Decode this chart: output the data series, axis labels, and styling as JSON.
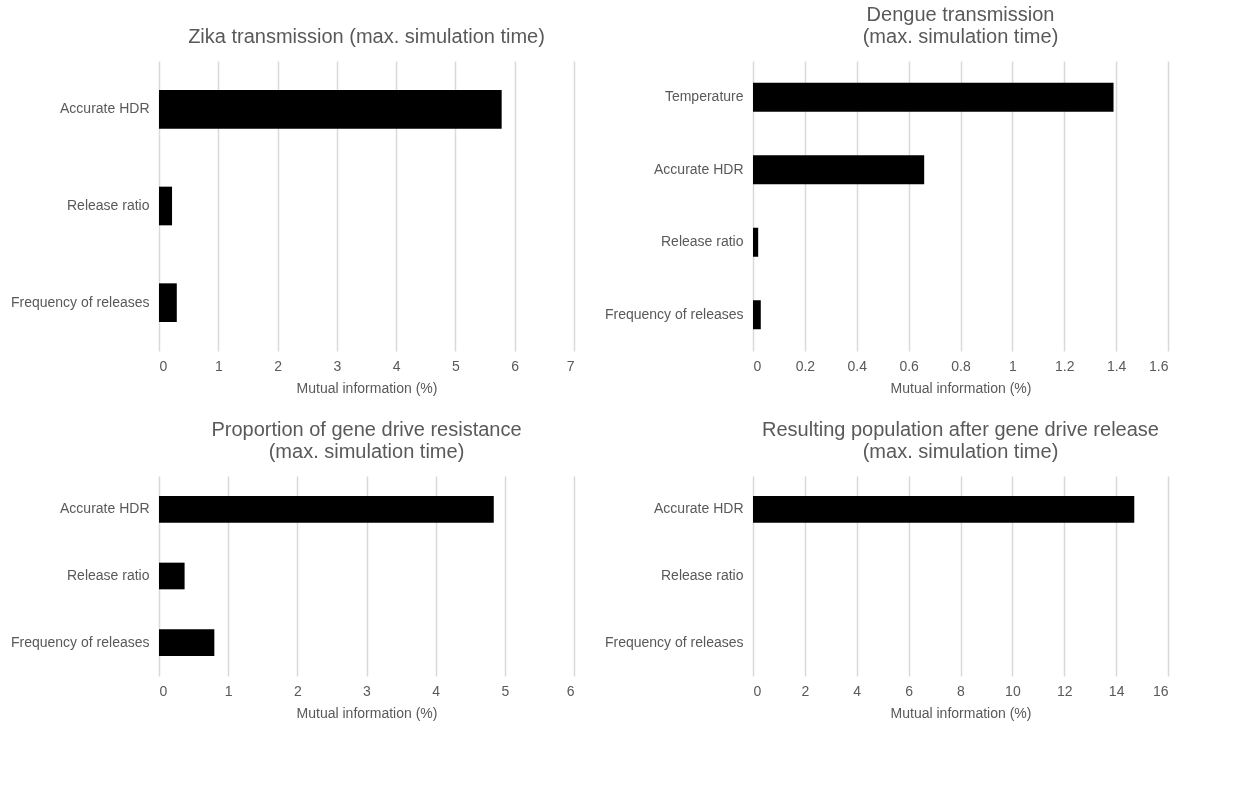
{
  "chart_data": [
    {
      "type": "bar",
      "orientation": "horizontal",
      "title": "Zika transmission (max. simulation time)",
      "xlabel": "Mutual information (%)",
      "categories": [
        "Accurate HDR",
        "Release ratio",
        "Frequency of releases"
      ],
      "values": [
        5.78,
        0.22,
        0.3
      ],
      "color": "#000000",
      "xlim": [
        0,
        7
      ],
      "xticks": [
        0,
        1,
        2,
        3,
        4,
        5,
        6,
        7
      ],
      "grid": "x"
    },
    {
      "type": "bar",
      "orientation": "horizontal",
      "title": "Dengue transmission (max. simulation time)",
      "xlabel": "Mutual information (%)",
      "categories": [
        "Temperature",
        "Accurate HDR",
        "Release ratio",
        "Frequency of releases"
      ],
      "values": [
        1.39,
        0.66,
        0.02,
        0.03
      ],
      "color": "#000000",
      "xlim": [
        0,
        1.6
      ],
      "xticks": [
        0,
        0.2,
        0.4,
        0.6,
        0.8,
        1,
        1.2,
        1.4,
        1.6
      ],
      "grid": "x"
    },
    {
      "type": "bar",
      "orientation": "horizontal",
      "title": "Proportion of gene drive resistance (max. simulation time)",
      "xlabel": "Mutual information (%)",
      "categories": [
        "Accurate HDR",
        "Release ratio",
        "Frequency of releases"
      ],
      "values": [
        4.84,
        0.37,
        0.8
      ],
      "color": "#000000",
      "xlim": [
        0,
        6
      ],
      "xticks": [
        0,
        1,
        2,
        3,
        4,
        5,
        6
      ],
      "grid": "x"
    },
    {
      "type": "bar",
      "orientation": "horizontal",
      "title": "Resulting population after gene drive release (max. simulation time)",
      "xlabel": "Mutual information (%)",
      "categories": [
        "Accurate HDR",
        "Release ratio",
        "Frequency of releases"
      ],
      "values": [
        14.7,
        0,
        0
      ],
      "color": "#000000",
      "xlim": [
        0,
        16
      ],
      "xticks": [
        0,
        2,
        4,
        6,
        8,
        10,
        12,
        14,
        16
      ],
      "grid": "x"
    }
  ]
}
